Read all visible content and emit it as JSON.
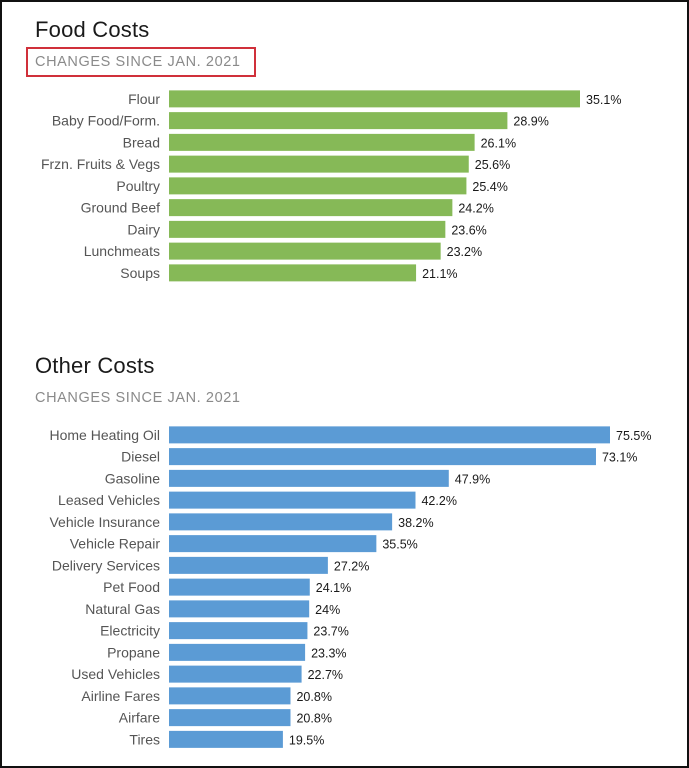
{
  "chart_data": [
    {
      "type": "bar",
      "orientation": "horizontal",
      "title": "Food Costs",
      "subtitle": "CHANGES SINCE JAN. 2021",
      "color": "#86b957",
      "categories": [
        "Flour",
        "Baby Food/Form.",
        "Bread",
        "Frzn. Fruits & Vegs",
        "Poultry",
        "Ground Beef",
        "Dairy",
        "Lunchmeats",
        "Soups"
      ],
      "values": [
        35.1,
        28.9,
        26.1,
        25.6,
        25.4,
        24.2,
        23.6,
        23.2,
        21.1
      ],
      "value_labels": [
        "35.1%",
        "28.9%",
        "26.1%",
        "25.6%",
        "25.4%",
        "24.2%",
        "23.6%",
        "23.2%",
        "21.1%"
      ],
      "xlim": [
        0,
        35.1
      ],
      "grid": false
    },
    {
      "type": "bar",
      "orientation": "horizontal",
      "title": "Other Costs",
      "subtitle": "CHANGES SINCE JAN. 2021",
      "color": "#5b9bd5",
      "categories": [
        "Home Heating Oil",
        "Diesel",
        "Gasoline",
        "Leased Vehicles",
        "Vehicle Insurance",
        "Vehicle Repair",
        "Delivery Services",
        "Pet Food",
        "Natural Gas",
        "Electricity",
        "Propane",
        "Used Vehicles",
        "Airline Fares",
        "Airfare",
        "Tires"
      ],
      "values": [
        75.5,
        73.1,
        47.9,
        42.2,
        38.2,
        35.5,
        27.2,
        24.1,
        24,
        23.7,
        23.3,
        22.7,
        20.8,
        20.8,
        19.5
      ],
      "value_labels": [
        "75.5%",
        "73.1%",
        "47.9%",
        "42.2%",
        "38.2%",
        "35.5%",
        "27.2%",
        "24.1%",
        "24%",
        "23.7%",
        "23.3%",
        "22.7%",
        "20.8%",
        "20.8%",
        "19.5%"
      ],
      "xlim": [
        0,
        75.5
      ],
      "grid": false
    }
  ],
  "highlight_color": "#d0303a"
}
